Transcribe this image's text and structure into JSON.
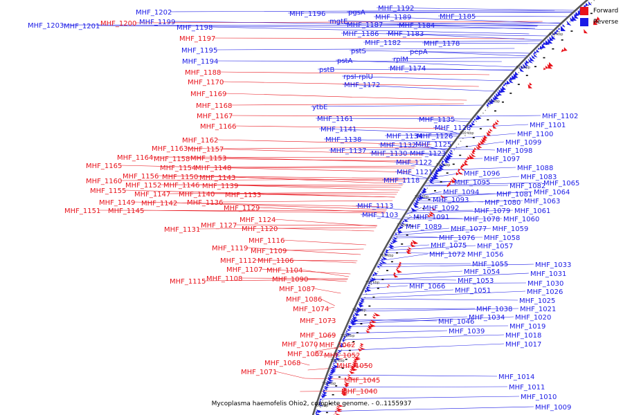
{
  "title": "Mycoplasma haemofelis Ohio2, complete genome. - 0..1155937",
  "colors": {
    "forward": "#e8131b",
    "reverse": "#1a1ae6"
  },
  "legend": [
    {
      "label": "Forward",
      "strand": "forward"
    },
    {
      "label": "Reverse",
      "strand": "reverse"
    }
  ],
  "ticks": [
    "830 kbp",
    "820 kbp",
    "810 kbp",
    "800 kbp",
    "790 kbp",
    "780 kbp",
    "770 kbp",
    "760 kbp",
    "750 kbp",
    "740 kbp",
    "730 kbp",
    "720 kbp",
    "710 kbp",
    "700 kbp"
  ],
  "forward_labels": [
    "MHF_1200",
    "MHF_1197",
    "MHF_1188",
    "MHF_1170",
    "MHF_1169",
    "MHF_1168",
    "MHF_1167",
    "MHF_1166",
    "MHF_1162",
    "MHF_1163",
    "MHF_1157",
    "MHF_1164",
    "MHF_1158",
    "MHF_1153",
    "MHF_1165",
    "MHF_1154",
    "MHF_1148",
    "MHF_1156",
    "MHF_1150",
    "MHF_1143",
    "MHF_1160",
    "MHF_1152",
    "MHF_1146",
    "MHF_1139",
    "MHF_1155",
    "MHF_1147",
    "MHF_1140",
    "MHF_1133",
    "MHF_1149",
    "MHF_1142",
    "MHF_1136",
    "MHF_1151",
    "MHF_1145",
    "MHF_1129",
    "MHF_1124",
    "MHF_1131",
    "MHF_1127",
    "MHF_1120",
    "MHF_1116",
    "MHF_1119",
    "MHF_1109",
    "MHF_1112",
    "MHF_1106",
    "MHF_1107",
    "MHF_1104",
    "MHF_1115",
    "MHF_1108",
    "MHF_1090",
    "MHF_1087",
    "MHF_1086",
    "MHF_1074",
    "MHF_1073",
    "MHF_1069",
    "MHF_1070",
    "MHF_1062",
    "MHF_1067",
    "MHF_1052",
    "MHF_1068",
    "MHF_1050",
    "MHF_1071",
    "MHF_1045",
    "MHF_1040"
  ],
  "reverse_labels": [
    "MHF_1202",
    "MHF_1203",
    "MHF_1201",
    "MHF_1199",
    "MHF_1198",
    "MHF_1195",
    "MHF_1194",
    "MHF_1196",
    "pgsA",
    "MHF_1192",
    "mgtE",
    "MHF_1189",
    "MHF_1187",
    "MHF_1185",
    "MHF_1186",
    "MHF_1184",
    "MHF_1183",
    "MHF_1182",
    "MHF_1178",
    "pstS",
    "pepA",
    "pstA",
    "rplM",
    "pstB",
    "MHF_1174",
    "rpsI-rplU",
    "MHF_1172",
    "ytbE",
    "MHF_1161",
    "MHF_1135",
    "MHF_1141",
    "MHF_1128",
    "MHF_1134",
    "MHF_1126",
    "MHF_1138",
    "MHF_1132",
    "MHF_1125",
    "MHF_1137",
    "MHF_1130",
    "MHF_1123",
    "MHF_1122",
    "MHF_1121",
    "MHF_1118",
    "MHF_1102",
    "MHF_1101",
    "MHF_1100",
    "MHF_1099",
    "MHF_1098",
    "MHF_1097",
    "MHF_1088",
    "MHF_1096",
    "MHF_1083",
    "MHF_1095",
    "MHF_1082",
    "MHF_1065",
    "MHF_1094",
    "MHF_1064",
    "MHF_1093",
    "MHF_1081",
    "MHF_1063",
    "MHF_1113",
    "MHF_1092",
    "MHF_1080",
    "MHF_1079",
    "MHF_1061",
    "MHF_1103",
    "MHF_1091",
    "MHF_1078",
    "MHF_1060",
    "MHF_1089",
    "MHF_1077",
    "MHF_1059",
    "MHF_1076",
    "MHF_1058",
    "MHF_1075",
    "MHF_1057",
    "MHF_1072",
    "MHF_1056",
    "MHF_1055",
    "MHF_1033",
    "MHF_1054",
    "MHF_1031",
    "MHF_1053",
    "MHF_1030",
    "MHF_1066",
    "MHF_1051",
    "MHF_1026",
    "MHF_1025",
    "MHF_1038",
    "MHF_1021",
    "MHF_1034",
    "MHF_1020",
    "MHF_1046",
    "MHF_1019",
    "MHF_1039",
    "MHF_1018",
    "MHF_1017",
    "MHF_1014",
    "MHF_1011",
    "MHF_1010",
    "MHF_1009"
  ]
}
